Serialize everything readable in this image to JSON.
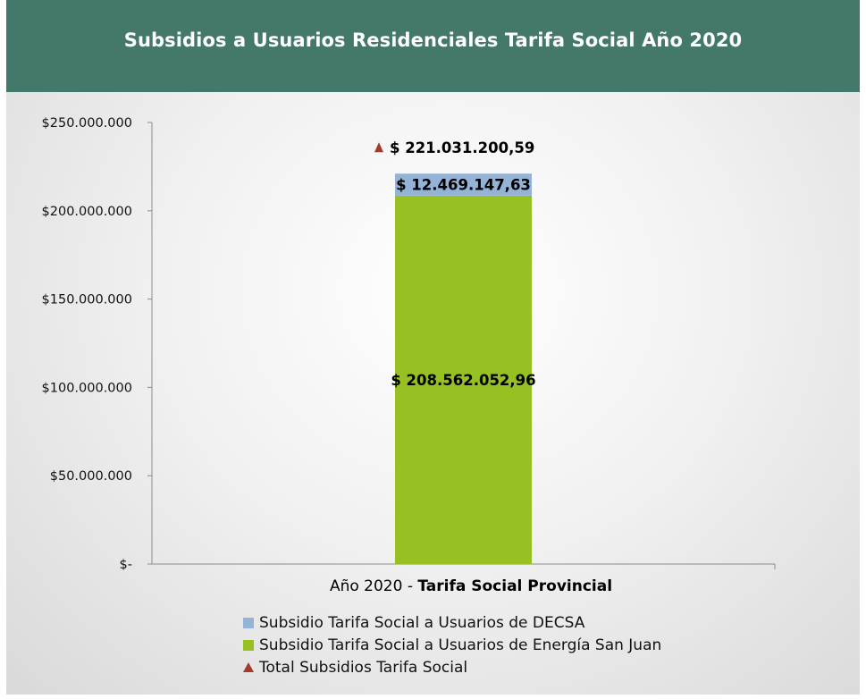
{
  "header": {
    "title": "Subsidios a Usuarios Residenciales Tarifa Social Año 2020",
    "background_color": "#44786a"
  },
  "chart_data": {
    "type": "bar",
    "stacked": true,
    "categories": [
      "Año 2020 - Tarifa Social Provincial"
    ],
    "category_parts": {
      "prefix": "Año 2020 - ",
      "bold": "Tarifa Social Provincial"
    },
    "series": [
      {
        "name": "Subsidio Tarifa Social a Usuarios de Energía San Juan",
        "values": [
          208562052.96
        ],
        "label": "$ 208.562.052,96",
        "color": "#97c123"
      },
      {
        "name": "Subsidio Tarifa Social a Usuarios de DECSA",
        "values": [
          12469147.63
        ],
        "label": "$ 12.469.147,63",
        "color": "#95b3d7"
      }
    ],
    "total": {
      "name": "Total Subsidios Tarifa Social",
      "values": [
        221031200.59
      ],
      "label": "$ 221.031.200,59",
      "marker": "triangle",
      "color": "#a33a2c"
    },
    "ylim": [
      0,
      250000000
    ],
    "yticks": [
      0,
      50000000,
      100000000,
      150000000,
      200000000,
      250000000
    ],
    "ytick_labels": [
      "$-",
      "$50.000.000",
      "$100.000.000",
      "$150.000.000",
      "$200.000.000",
      "$250.000.000"
    ],
    "grid": false,
    "legend_position": "bottom"
  },
  "legend": [
    {
      "label": "Subsidio Tarifa Social a Usuarios de DECSA",
      "color": "#95b3d7",
      "shape": "square"
    },
    {
      "label": "Subsidio Tarifa Social a Usuarios de Energía San Juan",
      "color": "#97c123",
      "shape": "square"
    },
    {
      "label": "Total Subsidios Tarifa Social",
      "color": "#a33a2c",
      "shape": "triangle"
    }
  ]
}
